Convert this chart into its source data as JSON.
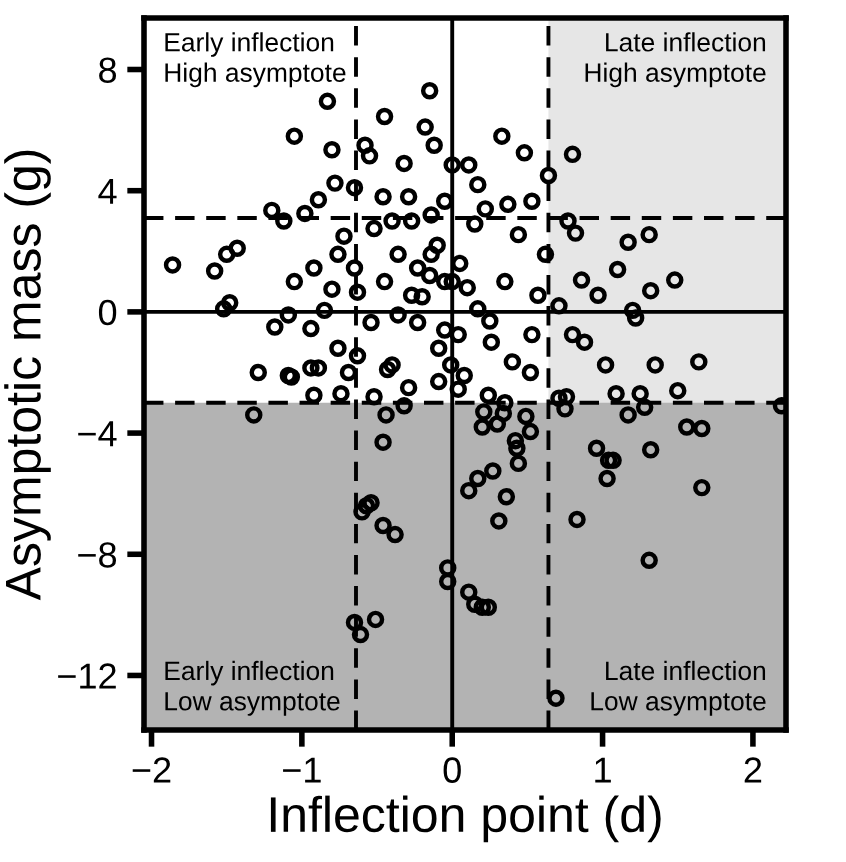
{
  "chart_data": {
    "type": "scatter",
    "xlabel": "Inflection point (d)",
    "ylabel": "Asymptotic mass (g)",
    "xlim": [
      -2.05,
      2.22
    ],
    "ylim": [
      -13.8,
      9.7
    ],
    "xticks": [
      {
        "value": -2,
        "label": "−2"
      },
      {
        "value": -1,
        "label": "−1"
      },
      0,
      1,
      2
    ],
    "yticks": [
      {
        "value": -12,
        "label": "−12"
      },
      {
        "value": -8,
        "label": "−8"
      },
      {
        "value": -4,
        "label": "−4"
      },
      0,
      4,
      8
    ],
    "grid": false,
    "marker": "circle",
    "annotations": [
      "Early inflection\nHigh asymptote",
      "Late inflection\nHigh asymptote",
      "Early inflection\nLow asymptote",
      "Late inflection\nLow asymptote"
    ],
    "bands": [
      {
        "axis": "x",
        "from": 0.64,
        "to": 2.22,
        "color": "#e6e6e6"
      },
      {
        "axis": "y",
        "from": -13.8,
        "to": -3.0,
        "color": "#b3b3b3"
      }
    ],
    "ref_lines": [
      {
        "axis": "x",
        "value": 0,
        "line_style": "solid"
      },
      {
        "axis": "y",
        "value": 0,
        "line_style": "solid"
      },
      {
        "axis": "x",
        "value": -0.64,
        "line_style": "dashed"
      },
      {
        "axis": "x",
        "value": 0.64,
        "line_style": "dashed"
      },
      {
        "axis": "y",
        "value": 3.1,
        "line_style": "dashed"
      },
      {
        "axis": "y",
        "value": -3.0,
        "line_style": "dashed"
      }
    ],
    "series": [
      {
        "color": "#000000",
        "x": [
          -0.15,
          -0.83,
          -0.45,
          -1.05,
          -0.18,
          -0.8,
          -0.58,
          -0.55,
          -0.32,
          -0.12,
          -0.78,
          -0.65,
          -0.46,
          -0.29,
          -0.89,
          -1.2,
          -1.12,
          -0.98,
          -1.43,
          -1.5,
          -1.58,
          -1.86,
          -1.52,
          -1.48,
          -1.05,
          -0.92,
          -0.8,
          -0.85,
          -1.09,
          -1.18,
          -0.94,
          -0.72,
          -0.76,
          -0.65,
          -0.63,
          -0.52,
          -0.4,
          -0.27,
          -0.14,
          -0.05,
          0.0,
          -0.36,
          -0.23,
          -0.45,
          -0.27,
          -0.14,
          -0.05,
          -0.54,
          -0.36,
          -0.23,
          -0.76,
          -0.63,
          -0.94,
          -1.29,
          -1.09,
          -0.4,
          -0.09,
          0.33,
          0.48,
          0.8,
          0.64,
          0.11,
          0.17,
          0.37,
          0.53,
          0.22,
          0.77,
          0.82,
          1.17,
          1.31,
          1.1,
          1.32,
          1.48,
          0.86,
          0.97,
          1.2,
          1.22,
          0.62,
          0.44,
          0.35,
          0.57,
          0.71,
          0.8,
          0.88,
          1.02,
          1.35,
          1.64,
          0.04,
          0.26,
          0.4,
          0.53,
          0.17,
          0.0,
          0.52,
          1.09,
          1.25,
          1.5,
          1.17,
          1.28,
          1.56,
          1.66,
          0.71,
          0.76,
          0.75,
          0.24,
          0.35,
          0.21,
          0.34,
          0.49,
          0.2,
          0.3,
          0.52,
          0.42,
          0.43,
          0.44,
          0.27,
          0.17,
          0.11,
          0.36,
          0.31,
          0.96,
          1.04,
          1.07,
          1.03,
          1.32,
          1.66,
          0.83,
          1.31,
          -0.03,
          -0.03,
          0.11,
          0.15,
          0.24,
          0.2,
          0.69,
          -0.01,
          0.08,
          -1.32,
          -0.44,
          -0.32,
          -0.46,
          -0.54,
          -0.57,
          -0.6,
          -0.46,
          -0.38,
          -0.65,
          -0.61,
          -0.51,
          -0.92,
          -0.74,
          -0.52,
          -1.07,
          -0.89,
          -0.69,
          -0.29,
          -0.09,
          0.04,
          -0.43,
          2.19,
          -0.1,
          0.05,
          0.1,
          -0.2,
          0.15,
          -0.05,
          0.25,
          -0.15
        ],
        "values": [
          7.3,
          6.95,
          6.45,
          5.8,
          6.1,
          5.35,
          5.5,
          5.15,
          4.9,
          5.5,
          4.25,
          4.1,
          3.8,
          3.8,
          3.7,
          3.35,
          3.0,
          3.25,
          2.1,
          1.9,
          1.35,
          1.55,
          0.1,
          0.3,
          1.0,
          1.45,
          0.75,
          0.05,
          -0.1,
          -0.5,
          -0.55,
          2.5,
          1.9,
          1.45,
          0.65,
          2.75,
          3.0,
          3.0,
          3.2,
          3.65,
          4.85,
          1.9,
          1.45,
          1.0,
          0.55,
          1.9,
          1.0,
          -0.35,
          -0.1,
          -0.35,
          -1.2,
          -1.45,
          -1.85,
          -2.0,
          -2.1,
          -1.75,
          -1.2,
          5.8,
          5.25,
          5.2,
          4.5,
          4.85,
          4.2,
          3.55,
          3.65,
          3.4,
          3.0,
          2.6,
          2.3,
          2.55,
          1.4,
          0.7,
          1.05,
          1.05,
          0.55,
          0.05,
          -0.2,
          1.9,
          2.55,
          1.0,
          0.55,
          0.2,
          -0.75,
          -1.0,
          -1.75,
          -1.75,
          -1.65,
          -0.75,
          -1.0,
          -1.65,
          -0.75,
          0.1,
          1.0,
          -2.0,
          -2.7,
          -2.7,
          -2.6,
          -3.4,
          -3.15,
          -3.8,
          -3.85,
          -2.85,
          -2.8,
          -3.2,
          -2.75,
          -3.0,
          -3.3,
          -3.35,
          -3.45,
          -3.8,
          -3.7,
          -3.95,
          -4.25,
          -4.5,
          -5.0,
          -5.25,
          -5.5,
          -5.9,
          -6.1,
          -6.9,
          -4.5,
          -4.9,
          -4.9,
          -5.5,
          -4.55,
          -5.8,
          -6.85,
          -8.2,
          -8.45,
          -8.9,
          -9.25,
          -9.65,
          -9.75,
          -9.75,
          -12.75,
          -1.75,
          -2.1,
          -3.4,
          -3.4,
          -3.1,
          -4.3,
          -6.3,
          -6.4,
          -6.6,
          -7.05,
          -7.35,
          -10.25,
          -10.65,
          -10.15,
          -2.75,
          -2.7,
          -2.8,
          -2.15,
          -1.85,
          -2.0,
          -2.5,
          -2.3,
          -2.55,
          -1.9,
          -3.1,
          2.2,
          1.6,
          0.8,
          0.5,
          2.9,
          -0.6,
          -0.3,
          1.2
        ]
      }
    ]
  }
}
